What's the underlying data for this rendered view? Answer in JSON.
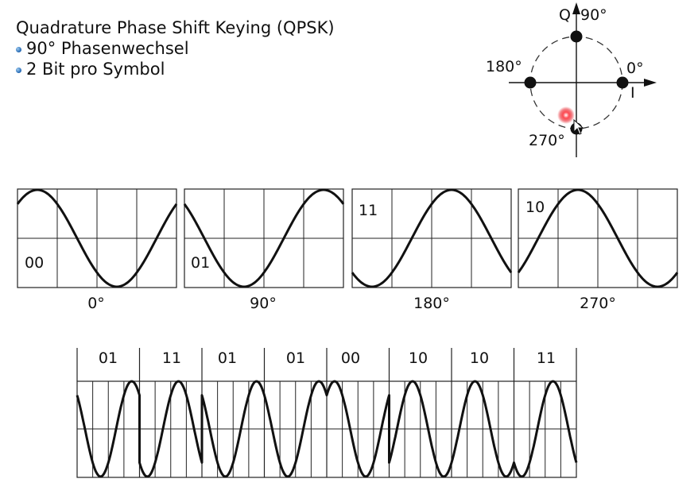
{
  "slide": {
    "title": "Quadrature Phase Shift Keying (QPSK)",
    "bullets": [
      "90° Phasenwechsel",
      "2 Bit pro Symbol"
    ]
  },
  "constellation": {
    "q_axis_label": "Q",
    "i_axis_label": "I",
    "points": [
      {
        "angle_label": "90°"
      },
      {
        "angle_label": "180°"
      },
      {
        "angle_label": "0°"
      },
      {
        "angle_label": "270°"
      }
    ]
  },
  "symbols": [
    {
      "bits": "00",
      "phase_deg": 0,
      "phase_label": "0°"
    },
    {
      "bits": "01",
      "phase_deg": 90,
      "phase_label": "90°"
    },
    {
      "bits": "11",
      "phase_deg": 180,
      "phase_label": "180°"
    },
    {
      "bits": "10",
      "phase_deg": 270,
      "phase_label": "270°"
    }
  ],
  "sequence": {
    "bits": [
      "01",
      "11",
      "01",
      "01",
      "00",
      "10",
      "10",
      "11"
    ]
  },
  "colors": {
    "stroke": "#111111",
    "grid": "#222222",
    "circle": "#333333",
    "cursor_glow": "#e8202a"
  }
}
